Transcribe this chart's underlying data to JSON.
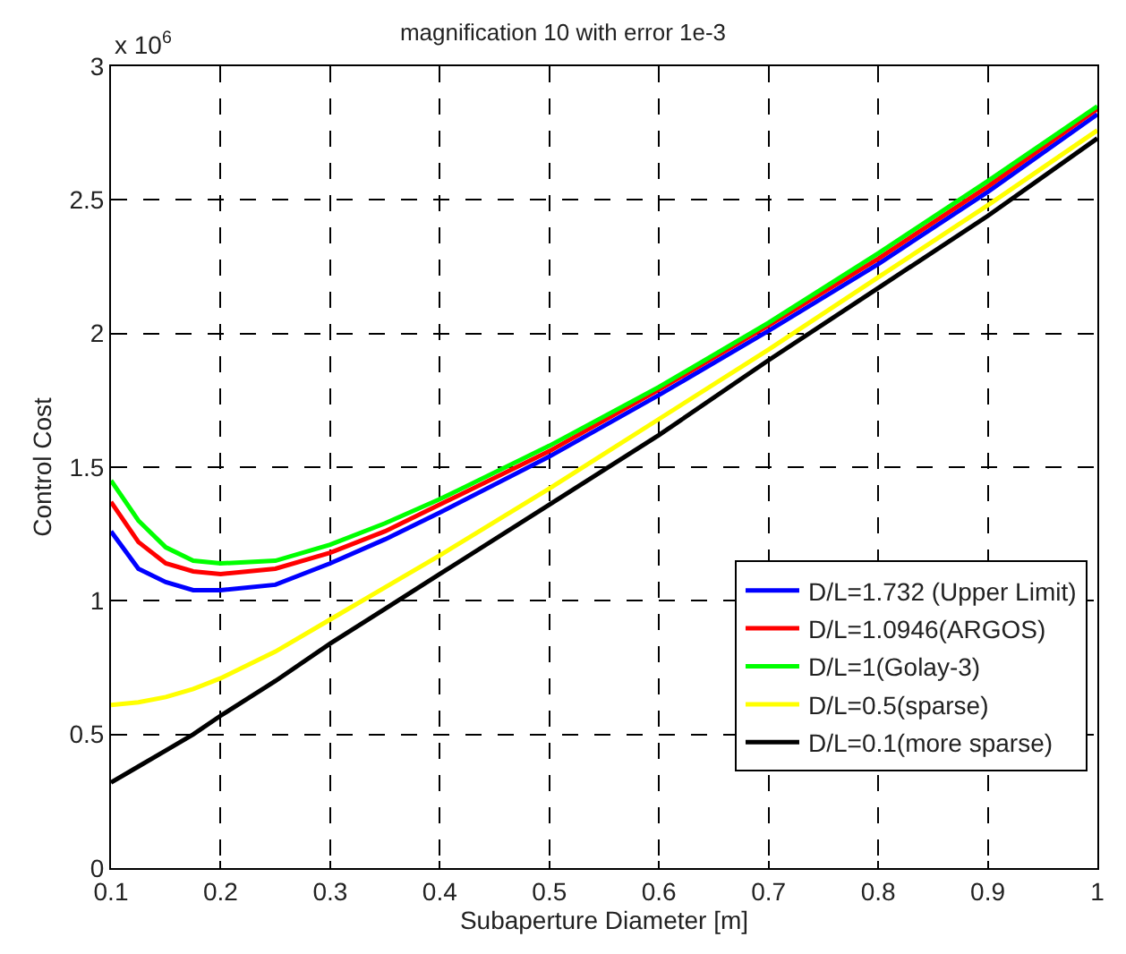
{
  "chart_data": {
    "type": "line",
    "title": "magnification 10 with error 1e-3",
    "xlabel": "Subaperture Diameter [m]",
    "ylabel": "Control Cost",
    "annotations": [
      "x 10$^{6}$"
    ],
    "x": [
      0.1,
      0.125,
      0.15,
      0.175,
      0.2,
      0.25,
      0.3,
      0.35,
      0.4,
      0.5,
      0.6,
      0.7,
      0.8,
      0.9,
      1.0
    ],
    "series": [
      {
        "name": "D/L=1.732 (Upper Limit)",
        "color": "#0000ff",
        "values": [
          1.26,
          1.12,
          1.07,
          1.04,
          1.04,
          1.06,
          1.14,
          1.23,
          1.33,
          1.54,
          1.77,
          2.01,
          2.26,
          2.53,
          2.82
        ]
      },
      {
        "name": "D/L=1.0946(ARGOS)",
        "color": "#ff0000",
        "values": [
          1.37,
          1.22,
          1.14,
          1.11,
          1.1,
          1.12,
          1.18,
          1.26,
          1.36,
          1.56,
          1.79,
          2.03,
          2.28,
          2.55,
          2.84
        ]
      },
      {
        "name": "D/L=1(Golay-3)",
        "color": "#00ff00",
        "values": [
          1.45,
          1.3,
          1.2,
          1.15,
          1.14,
          1.15,
          1.21,
          1.29,
          1.38,
          1.58,
          1.8,
          2.04,
          2.3,
          2.57,
          2.85
        ]
      },
      {
        "name": "D/L=0.5(sparse)",
        "color": "#ffff00",
        "values": [
          0.61,
          0.62,
          0.64,
          0.67,
          0.71,
          0.81,
          0.93,
          1.05,
          1.17,
          1.42,
          1.68,
          1.94,
          2.21,
          2.48,
          2.76
        ]
      },
      {
        "name": "D/L=0.1(more sparse)",
        "color": "#000000",
        "values": [
          0.32,
          0.38,
          0.44,
          0.5,
          0.57,
          0.7,
          0.84,
          0.97,
          1.1,
          1.36,
          1.62,
          1.9,
          2.17,
          2.44,
          2.73
        ]
      }
    ],
    "xlim": [
      0.1,
      1.0
    ],
    "xticks": [
      0.1,
      0.2,
      0.3,
      0.4,
      0.5,
      0.6,
      0.7,
      0.8,
      0.9,
      1
    ],
    "ylim": [
      0,
      3
    ],
    "yticks": [
      0,
      0.5,
      1,
      1.5,
      2,
      2.5,
      3
    ],
    "grid": true,
    "legend": "bottom right",
    "line_style": "solid",
    "marker": "none"
  }
}
